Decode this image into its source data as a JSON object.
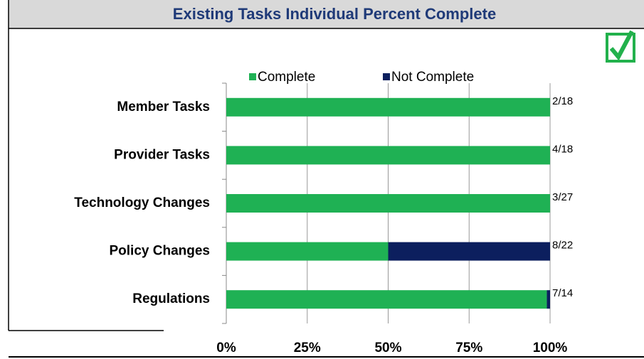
{
  "chart_data": {
    "type": "stacked_bar_horizontal",
    "title": "Existing Tasks Individual Percent Complete",
    "categories": [
      "Member Tasks",
      "Provider Tasks",
      "Technology Changes",
      "Policy Changes",
      "Regulations"
    ],
    "series": [
      {
        "name": "Complete",
        "color": "#1fb154",
        "values": [
          100,
          100,
          100,
          50,
          99
        ]
      },
      {
        "name": "Not Complete",
        "color": "#0c1f5e",
        "values": [
          0,
          0,
          0,
          50,
          1
        ]
      }
    ],
    "annotations": [
      "2/18",
      "4/18",
      "3/27",
      "8/22",
      "7/14"
    ],
    "xlim": [
      0,
      100
    ],
    "xticks": [
      {
        "value": 0,
        "label": "0%"
      },
      {
        "value": 25,
        "label": "25%"
      },
      {
        "value": 50,
        "label": "50%"
      },
      {
        "value": 75,
        "label": "75%"
      },
      {
        "value": 100,
        "label": "100%"
      }
    ],
    "grid": true,
    "legend": "top"
  }
}
